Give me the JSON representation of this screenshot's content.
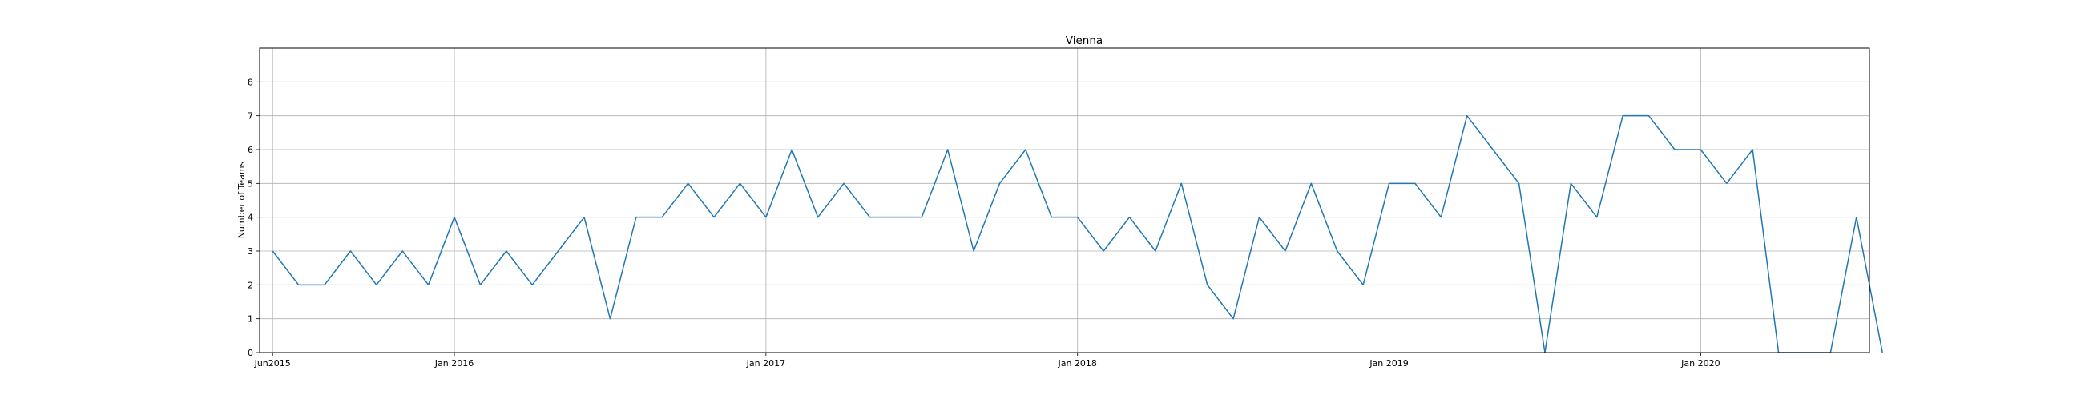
{
  "chart_data": {
    "type": "line",
    "title": "Vienna",
    "xlabel": "",
    "ylabel": "Number of Teams",
    "x_start": "2015-06",
    "x_end": "2020-06",
    "xlim": [
      "2015-05",
      "2020-07"
    ],
    "ylim": [
      0,
      9
    ],
    "grid": true,
    "line_color": "#1f77b4",
    "x_ticks": [
      {
        "date": "2015-06",
        "label": "Jun2015"
      },
      {
        "date": "2016-01",
        "label": "Jan 2016"
      },
      {
        "date": "2017-01",
        "label": "Jan 2017"
      },
      {
        "date": "2018-01",
        "label": "Jan 2018"
      },
      {
        "date": "2019-01",
        "label": "Jan 2019"
      },
      {
        "date": "2020-01",
        "label": "Jan 2020"
      }
    ],
    "y_ticks": [
      0,
      1,
      2,
      3,
      4,
      5,
      6,
      7,
      8
    ],
    "series": [
      {
        "values": [
          3,
          2,
          2,
          3,
          2,
          3,
          2,
          4,
          2,
          3,
          2,
          3,
          4,
          1,
          4,
          4,
          5,
          4,
          5,
          4,
          6,
          4,
          5,
          4,
          4,
          4,
          6,
          3,
          5,
          6,
          4,
          4,
          3,
          4,
          3,
          5,
          2,
          1,
          4,
          3,
          5,
          3,
          2,
          5,
          5,
          4,
          7,
          6,
          5,
          0,
          5,
          4,
          7,
          7,
          6,
          6,
          5,
          6,
          0,
          0,
          0,
          4,
          0
        ]
      }
    ]
  }
}
